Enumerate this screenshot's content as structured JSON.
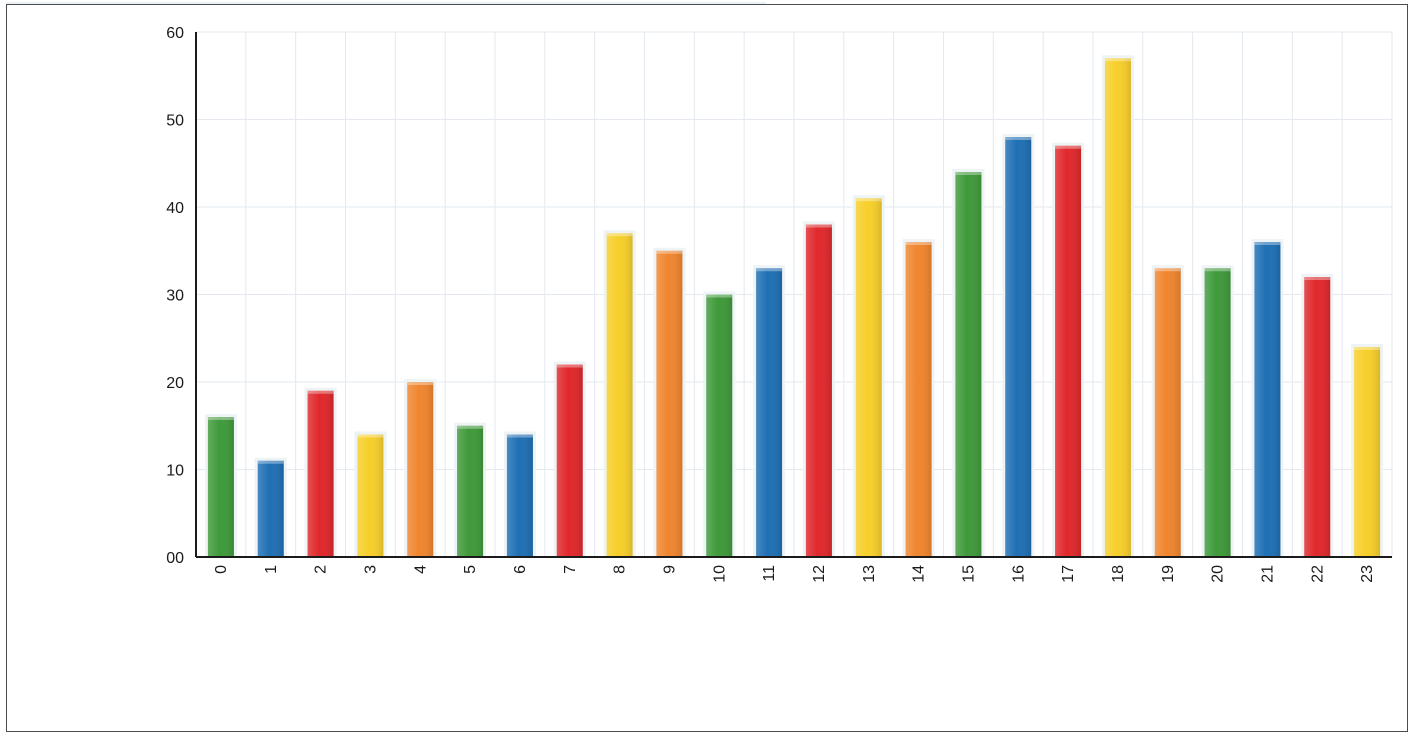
{
  "chart_data": {
    "type": "bar",
    "title": "",
    "xlabel": "",
    "ylabel": "",
    "categories": [
      "0",
      "1",
      "2",
      "3",
      "4",
      "5",
      "6",
      "7",
      "8",
      "9",
      "10",
      "11",
      "12",
      "13",
      "14",
      "15",
      "16",
      "17",
      "18",
      "19",
      "20",
      "21",
      "22",
      "23"
    ],
    "values": [
      16,
      11,
      19,
      14,
      20,
      15,
      14,
      22,
      37,
      35,
      30,
      33,
      38,
      41,
      36,
      44,
      48,
      47,
      57,
      33,
      33,
      36,
      32,
      24
    ],
    "bar_colors": [
      "#3f9a3a",
      "#1f6fb4",
      "#e0282c",
      "#f7cf2a",
      "#f0852e",
      "#3f9a3a",
      "#1f6fb4",
      "#e0282c",
      "#f7cf2a",
      "#f0852e",
      "#3f9a3a",
      "#1f6fb4",
      "#e0282c",
      "#f7cf2a",
      "#f0852e",
      "#3f9a3a",
      "#1f6fb4",
      "#e0282c",
      "#f7cf2a",
      "#f0852e",
      "#3f9a3a",
      "#1f6fb4",
      "#e0282c",
      "#f7cf2a"
    ],
    "ylim": [
      0,
      60
    ],
    "yticks": [
      "00",
      "10",
      "20",
      "30",
      "40",
      "50",
      "60"
    ],
    "grid": true,
    "legend": "none"
  }
}
